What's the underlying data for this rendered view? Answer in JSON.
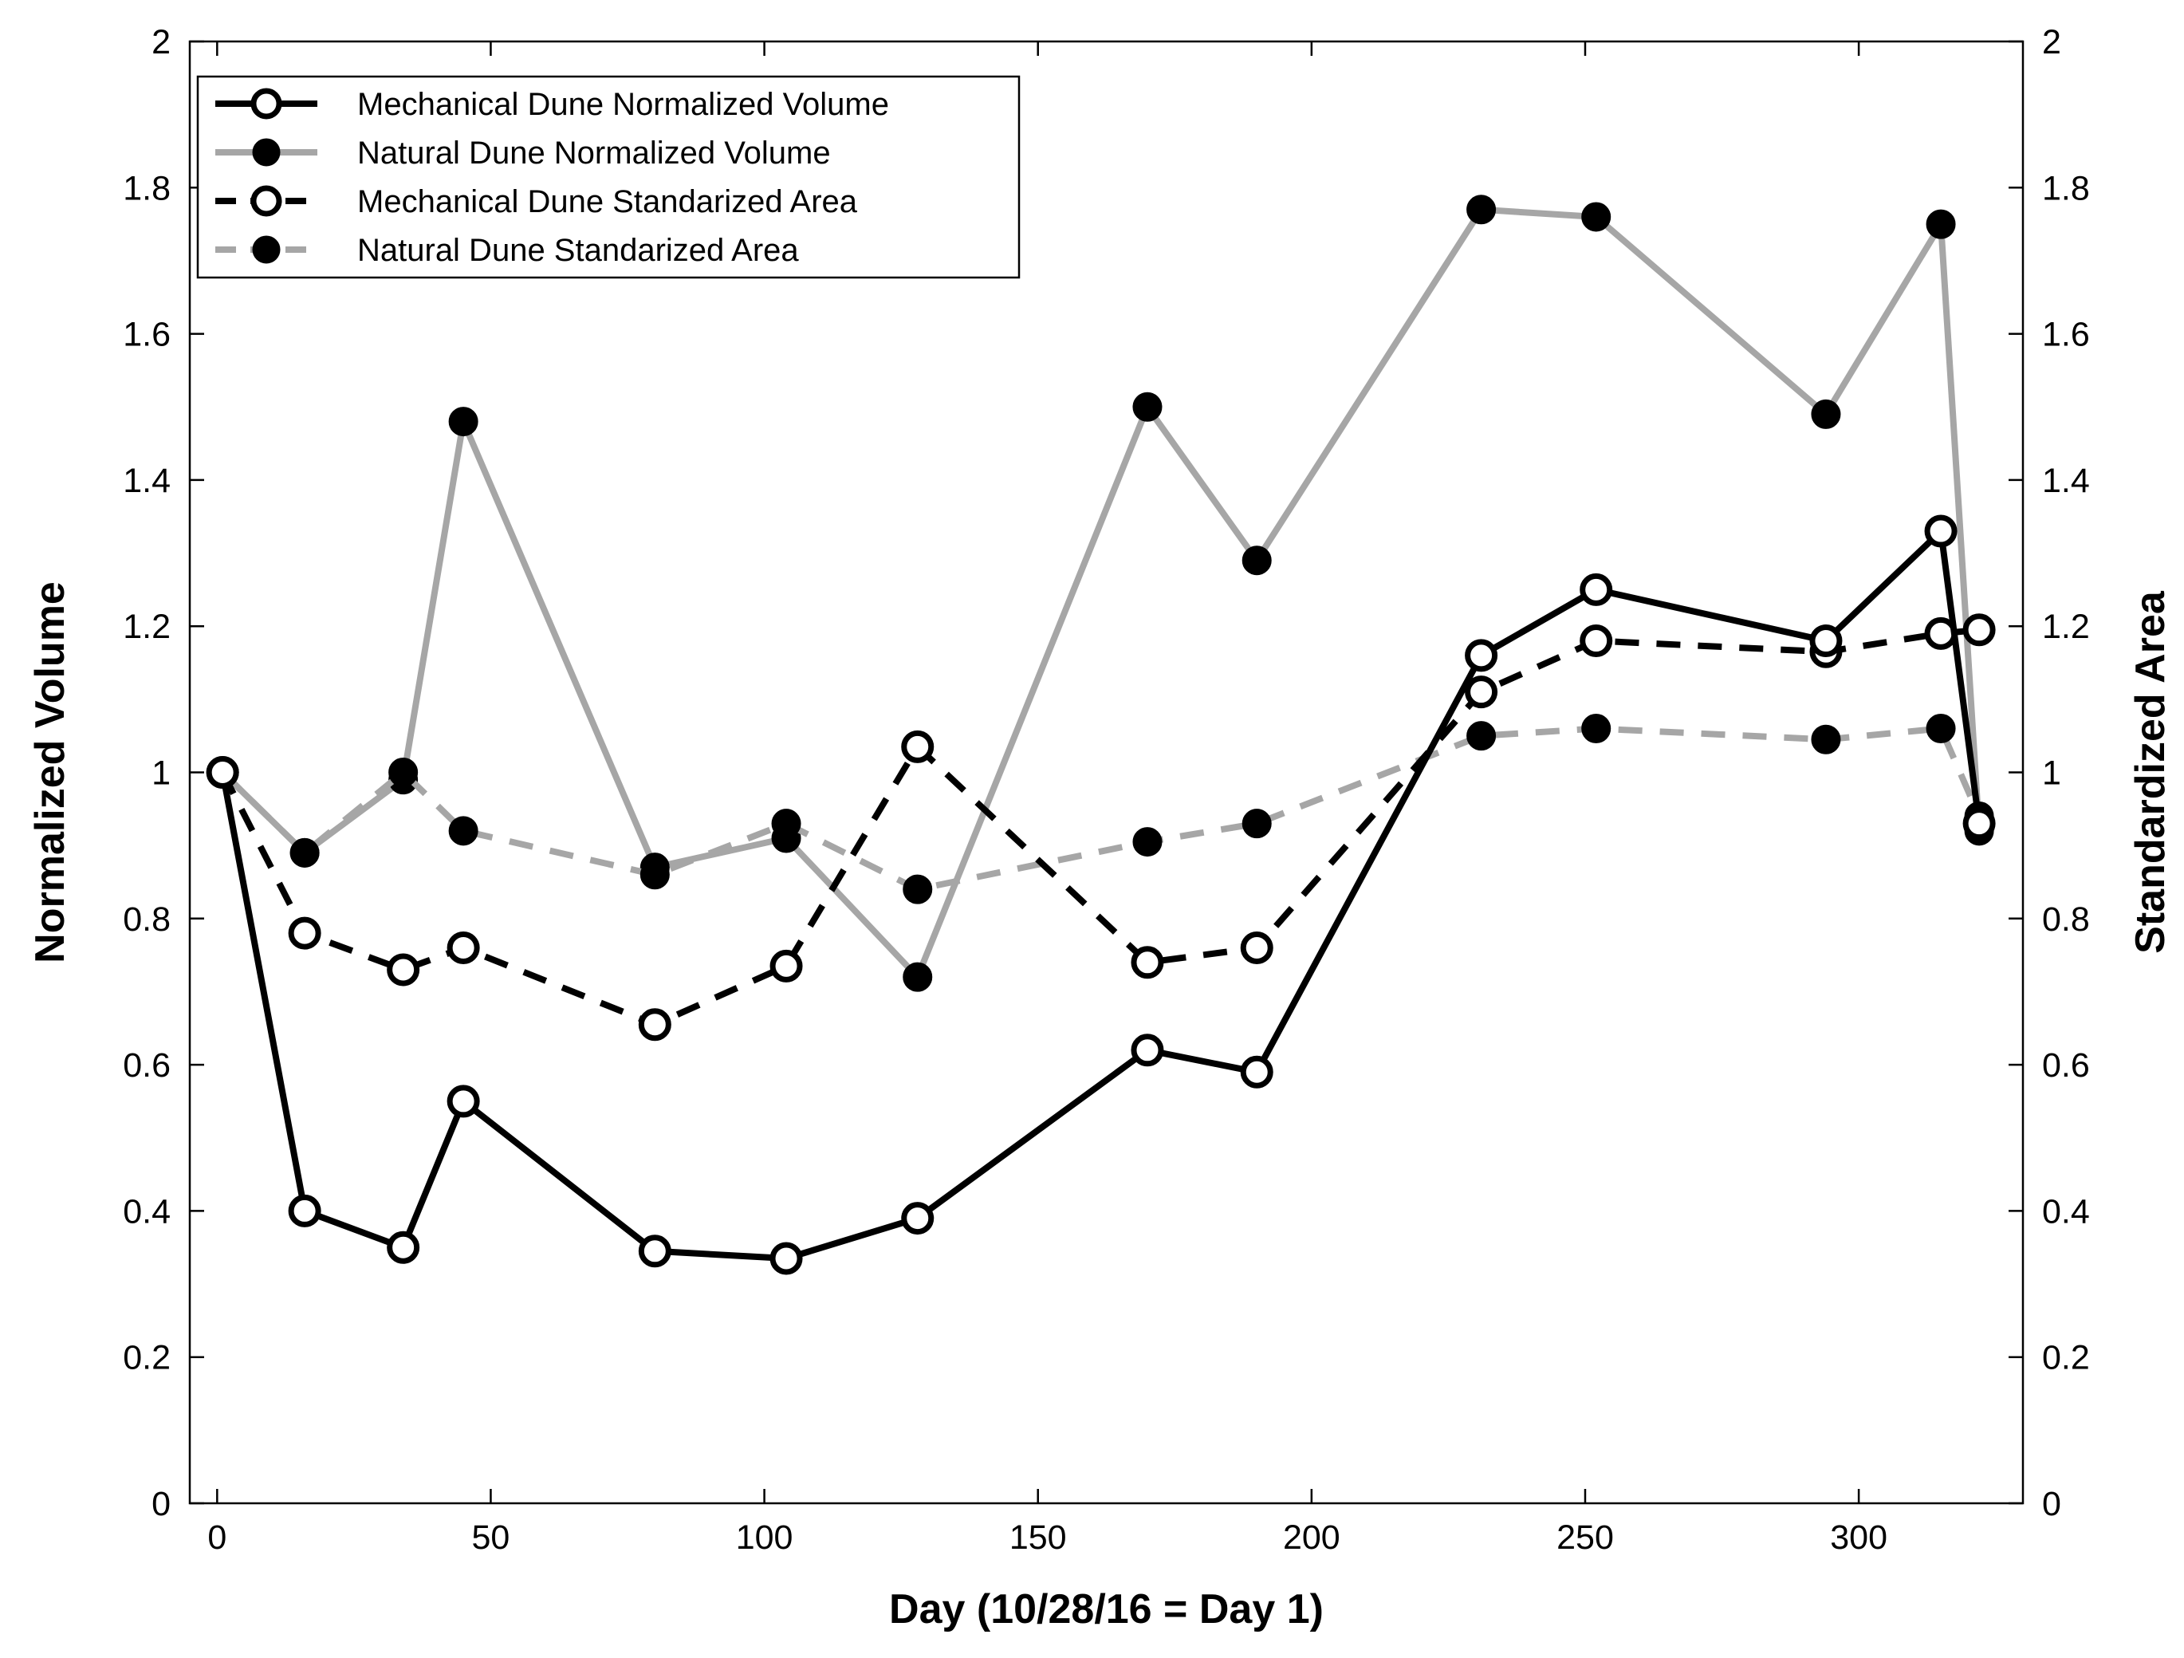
{
  "chart_data": {
    "type": "line",
    "title": "",
    "xlabel": "Day (10/28/16 = Day 1)",
    "ylabel": "Normalized Volume",
    "y2label": "Standardized Area",
    "xlim": [
      -5,
      330
    ],
    "ylim": [
      0,
      2
    ],
    "y2lim": [
      0,
      2
    ],
    "xticks": [
      "0",
      "50",
      "100",
      "150",
      "200",
      "250",
      "300"
    ],
    "yticks": [
      "0",
      "0.2",
      "0.4",
      "0.6",
      "0.8",
      "1",
      "1.2",
      "1.4",
      "1.6",
      "1.8",
      "2"
    ],
    "y2ticks": [
      "0",
      "0.2",
      "0.4",
      "0.6",
      "0.8",
      "1",
      "1.2",
      "1.4",
      "1.6",
      "1.8",
      "2"
    ],
    "grid": false,
    "legend_position": "top-left",
    "series": [
      {
        "name": "Mechanical Dune Normalized Volume",
        "color": "#000000",
        "line_style": "solid",
        "marker": "open-circle",
        "x": [
          1,
          16,
          34,
          45,
          80,
          104,
          128,
          170,
          190,
          231,
          252,
          294,
          315,
          322
        ],
        "values": [
          1.0,
          0.4,
          0.35,
          0.55,
          0.345,
          0.335,
          0.39,
          0.62,
          0.59,
          1.16,
          1.25,
          1.18,
          1.33,
          0.93
        ]
      },
      {
        "name": "Natural Dune Normalized Volume",
        "color": "#a6a6a6",
        "line_style": "solid",
        "marker": "filled-circle",
        "x": [
          1,
          16,
          34,
          45,
          80,
          104,
          128,
          170,
          190,
          231,
          252,
          294,
          315,
          322
        ],
        "values": [
          1.0,
          0.89,
          0.99,
          1.48,
          0.87,
          0.91,
          0.72,
          1.5,
          1.29,
          1.77,
          1.76,
          1.49,
          1.75,
          0.92
        ]
      },
      {
        "name": "Mechanical Dune Standarized Area",
        "color": "#000000",
        "line_style": "dashed",
        "marker": "open-circle",
        "x": [
          1,
          16,
          34,
          45,
          80,
          104,
          128,
          170,
          190,
          231,
          252,
          294,
          315,
          322
        ],
        "values": [
          1.0,
          0.78,
          0.73,
          0.76,
          0.655,
          0.735,
          1.035,
          0.74,
          0.76,
          1.11,
          1.18,
          1.165,
          1.19,
          1.195
        ]
      },
      {
        "name": "Natural Dune Standarized Area",
        "color": "#a6a6a6",
        "line_style": "dashed",
        "marker": "filled-circle",
        "x": [
          1,
          16,
          34,
          45,
          80,
          104,
          128,
          170,
          190,
          231,
          252,
          294,
          315,
          322
        ],
        "values": [
          1.0,
          0.89,
          1.0,
          0.92,
          0.86,
          0.93,
          0.84,
          0.905,
          0.93,
          1.05,
          1.06,
          1.045,
          1.06,
          0.94
        ]
      }
    ]
  }
}
